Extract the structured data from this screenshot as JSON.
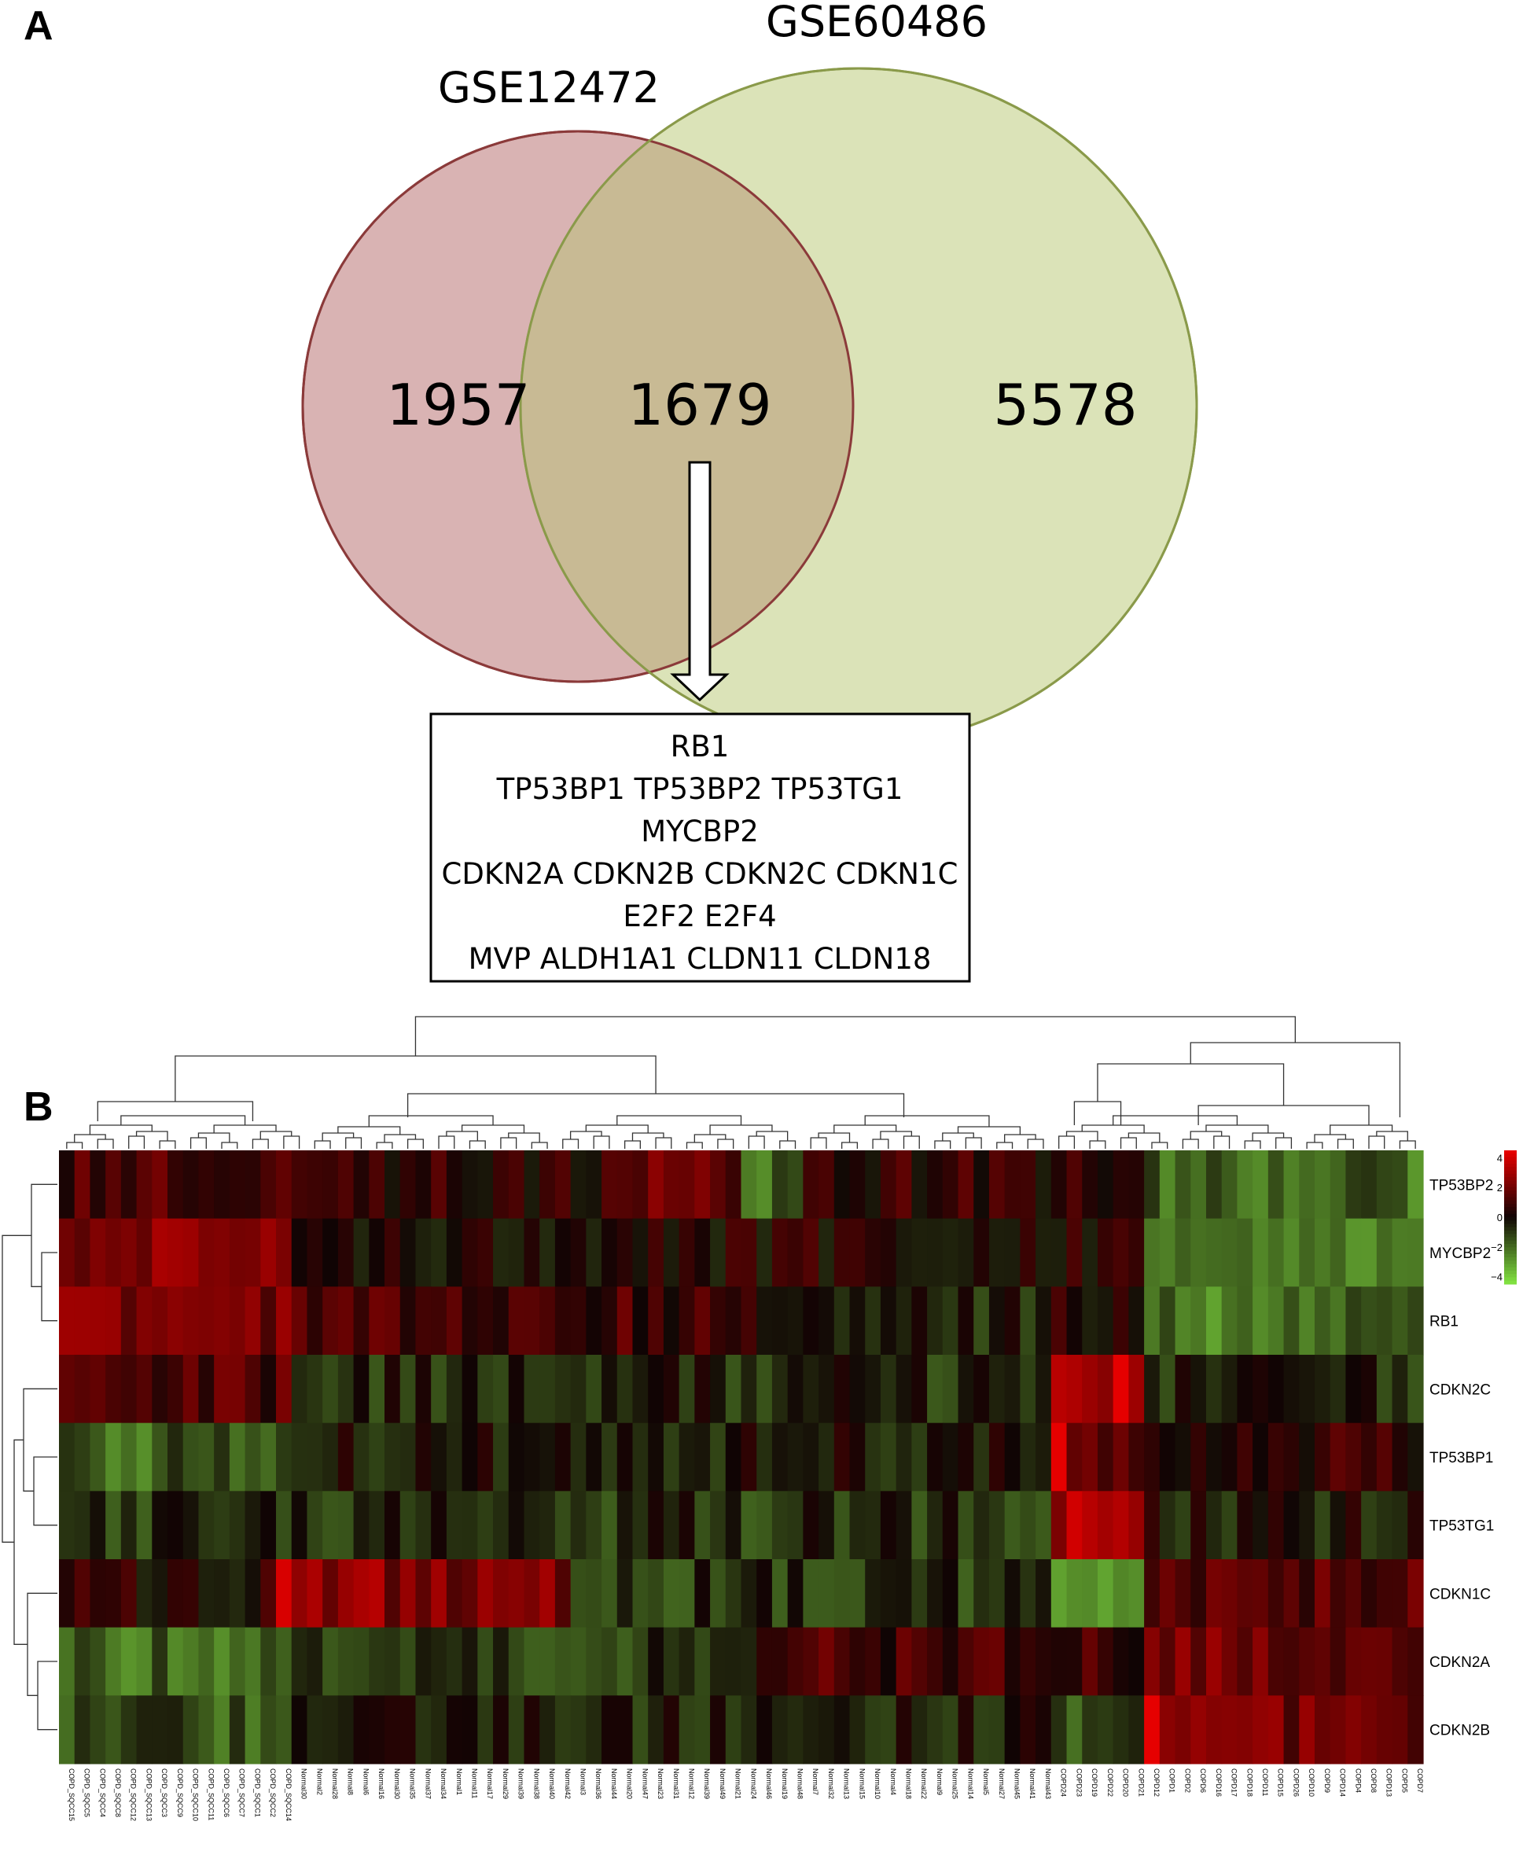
{
  "panel_a": {
    "label": "A",
    "set_left": "GSE12472",
    "set_right": "GSE60486",
    "left_only": "1957",
    "overlap": "1679",
    "right_only": "5578",
    "gene_lines": [
      "RB1",
      "TP53BP1 TP53BP2 TP53TG1",
      "MYCBP2",
      "CDKN2A  CDKN2B CDKN2C CDKN1C",
      "E2F2 E2F4",
      "MVP ALDH1A1 CLDN11 CLDN18"
    ],
    "colors": {
      "left_fill": "#d9b3b3",
      "left_stroke": "#8b3a3a",
      "right_fill": "#dbe3b8",
      "right_stroke": "#8a9a4a",
      "overlap_fill": "#c8ba94"
    }
  },
  "panel_b": {
    "label": "B",
    "colorbar_ticks": [
      "4",
      "2",
      "0",
      "−2",
      "−4"
    ],
    "colorbar_values": [
      4,
      2,
      0,
      -2,
      -4
    ],
    "genes": [
      "TP53BP2",
      "MYCBP2",
      "RB1",
      "CDKN2C",
      "TP53BP1",
      "TP53TG1",
      "CDKN1C",
      "CDKN2A",
      "CDKN2B"
    ],
    "samples": [
      "COPD_SQCC15",
      "COPD_SQCC5",
      "COPD_SQCC4",
      "COPD_SQCC8",
      "COPD_SQCC12",
      "COPD_SQCC13",
      "COPD_SQCC3",
      "COPD_SQCC9",
      "COPD_SQCC10",
      "COPD_SQCC11",
      "COPD_SQCC6",
      "COPD_SQCC7",
      "COPD_SQCC1",
      "COPD_SQCC2",
      "COPD_SQCC14",
      "Normal30",
      "Normal2",
      "Normal28",
      "Normal8",
      "Normal6",
      "Normal16",
      "Normal30",
      "Normal35",
      "Normal37",
      "Normal34",
      "Normal1",
      "Normal11",
      "Normal17",
      "Normal29",
      "Normal39",
      "Normal38",
      "Normal40",
      "Normal42",
      "Normal3",
      "Normal36",
      "Normal44",
      "Normal20",
      "Normal47",
      "Normal23",
      "Normal31",
      "Normal12",
      "Normal39",
      "Normal49",
      "Normal21",
      "Normal24",
      "Normal46",
      "Normal19",
      "Normal48",
      "Normal7",
      "Normal32",
      "Normal13",
      "Normal15",
      "Normal10",
      "Normal4",
      "Normal18",
      "Normal22",
      "Normal9",
      "Normal25",
      "Normal14",
      "Normal5",
      "Normal27",
      "Normal45",
      "Normal41",
      "Normal43",
      "COPD24",
      "COPD23",
      "COPD19",
      "COPD22",
      "COPD20",
      "COPD21",
      "COPD12",
      "COPD1",
      "COPD2",
      "COPD6",
      "COPD16",
      "COPD17",
      "COPD18",
      "COPD11",
      "COPD15",
      "COPD26",
      "COPD10",
      "COPD9",
      "COPD14",
      "COPD4",
      "COPD8",
      "COPD13",
      "COPD5",
      "COPD7"
    ],
    "colors": {
      "high": "#e00000",
      "mid": "#100404",
      "low": "#80e040"
    }
  }
}
